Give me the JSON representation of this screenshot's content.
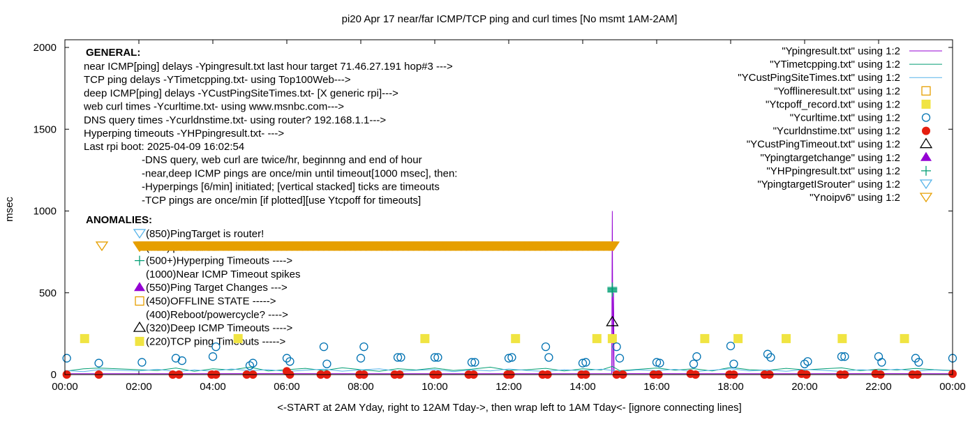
{
  "chart_data": {
    "type": "scatter",
    "title": "pi20 Apr 17  near/far ICMP/TCP ping and curl times [No msmt 1AM-2AM]",
    "xlabel": "<-START at 2AM Yday, right to 12AM Tday->, then wrap left to 1AM Tday<- [ignore connecting lines]",
    "ylabel": "msec",
    "xlim": [
      "00:00",
      "24:00"
    ],
    "ylim": [
      0,
      2050
    ],
    "x_ticks": [
      "00:00",
      "02:00",
      "04:00",
      "06:00",
      "08:00",
      "10:00",
      "12:00",
      "14:00",
      "16:00",
      "18:00",
      "20:00",
      "22:00",
      "00:00"
    ],
    "y_ticks": [
      0,
      500,
      1000,
      1500,
      2000
    ],
    "grid": false,
    "legend_placement": "top-right",
    "colors": {
      "ping": "#9400d3",
      "tcp": "#009e73",
      "custping": "#56b4e9",
      "offline": "#e69f00",
      "tcpoff": "#f0e442",
      "curl": "#0072b2",
      "dns": "#e51e10",
      "timeout": "#000000",
      "targetchange": "#9400d3",
      "hpping": "#009e73",
      "isrouter": "#56b4e9",
      "noipv6": "#e69f00"
    },
    "series": [
      {
        "name": "\"Ypingresult.txt\" using 1:2",
        "key": "ping",
        "style": "line",
        "points": [
          [
            "00:00",
            5
          ],
          [
            "00:55",
            5
          ],
          [
            "02:00",
            5
          ],
          [
            "06:00",
            6
          ],
          [
            "10:00",
            5
          ],
          [
            "14:47",
            6
          ],
          [
            "14:48",
            1000
          ],
          [
            "14:49",
            6
          ],
          [
            "14:50",
            500
          ],
          [
            "14:51",
            6
          ],
          [
            "18:00",
            5
          ],
          [
            "22:00",
            6
          ],
          [
            "24:00",
            5
          ]
        ]
      },
      {
        "name": "\"YTimetcpping.txt\" using 1:2",
        "key": "tcp",
        "style": "line",
        "points": [
          [
            "00:00",
            20
          ],
          [
            "00:30",
            35
          ],
          [
            "00:55",
            40
          ],
          [
            "02:00",
            30
          ],
          [
            "02:30",
            25
          ],
          [
            "03:00",
            40
          ],
          [
            "03:30",
            20
          ],
          [
            "04:00",
            35
          ],
          [
            "04:30",
            28
          ],
          [
            "05:00",
            45
          ],
          [
            "05:30",
            22
          ],
          [
            "06:00",
            30
          ],
          [
            "06:30",
            38
          ],
          [
            "07:00",
            25
          ],
          [
            "07:30",
            42
          ],
          [
            "08:00",
            30
          ],
          [
            "08:30",
            20
          ],
          [
            "09:00",
            36
          ],
          [
            "09:30",
            28
          ],
          [
            "10:00",
            40
          ],
          [
            "10:30",
            25
          ],
          [
            "11:00",
            33
          ],
          [
            "11:30",
            45
          ],
          [
            "12:00",
            26
          ],
          [
            "12:30",
            30
          ],
          [
            "13:00",
            38
          ],
          [
            "13:30",
            22
          ],
          [
            "14:00",
            35
          ],
          [
            "14:30",
            28
          ],
          [
            "14:48",
            50
          ],
          [
            "15:00",
            24
          ],
          [
            "15:30",
            32
          ],
          [
            "16:00",
            40
          ],
          [
            "16:30",
            27
          ],
          [
            "17:00",
            36
          ],
          [
            "17:30",
            22
          ],
          [
            "18:00",
            44
          ],
          [
            "18:30",
            30
          ],
          [
            "19:00",
            26
          ],
          [
            "19:30",
            38
          ],
          [
            "20:00",
            29
          ],
          [
            "20:30",
            35
          ],
          [
            "21:00",
            41
          ],
          [
            "21:30",
            24
          ],
          [
            "22:00",
            33
          ],
          [
            "22:30",
            28
          ],
          [
            "23:00",
            37
          ],
          [
            "23:30",
            30
          ],
          [
            "24:00",
            25
          ]
        ]
      },
      {
        "name": "\"YCustPingSiteTimes.txt\" using 1:2",
        "key": "custping",
        "style": "line",
        "points": [
          [
            "00:00",
            25
          ],
          [
            "00:30",
            18
          ],
          [
            "00:55",
            30
          ],
          [
            "02:00",
            22
          ],
          [
            "02:30",
            32
          ],
          [
            "03:00",
            18
          ],
          [
            "03:30",
            28
          ],
          [
            "04:00",
            20
          ],
          [
            "04:30",
            34
          ],
          [
            "05:00",
            24
          ],
          [
            "05:30",
            30
          ],
          [
            "06:00",
            19
          ],
          [
            "06:30",
            27
          ],
          [
            "07:00",
            33
          ],
          [
            "07:30",
            21
          ],
          [
            "08:00",
            29
          ],
          [
            "08:30",
            35
          ],
          [
            "09:00",
            20
          ],
          [
            "09:30",
            26
          ],
          [
            "10:00",
            31
          ],
          [
            "10:30",
            18
          ],
          [
            "11:00",
            28
          ],
          [
            "11:30",
            22
          ],
          [
            "12:00",
            34
          ],
          [
            "12:30",
            25
          ],
          [
            "13:00",
            19
          ],
          [
            "13:30",
            30
          ],
          [
            "14:00",
            23
          ],
          [
            "14:30",
            33
          ],
          [
            "15:00",
            20
          ],
          [
            "15:30",
            29
          ],
          [
            "16:00",
            24
          ],
          [
            "16:30",
            32
          ],
          [
            "17:00",
            18
          ],
          [
            "17:30",
            27
          ],
          [
            "18:00",
            35
          ],
          [
            "18:30",
            22
          ],
          [
            "19:00",
            28
          ],
          [
            "19:30",
            20
          ],
          [
            "20:00",
            31
          ],
          [
            "20:30",
            26
          ],
          [
            "21:00",
            19
          ],
          [
            "21:30",
            30
          ],
          [
            "22:00",
            24
          ],
          [
            "22:30",
            33
          ],
          [
            "23:00",
            21
          ],
          [
            "23:30",
            28
          ],
          [
            "24:00",
            23
          ]
        ]
      },
      {
        "name": "\"Yofflineresult.txt\" using 1:2",
        "key": "offline",
        "style": "open-square",
        "points": []
      },
      {
        "name": "\"Ytcpoff_record.txt\" using 1:2",
        "key": "tcpoff",
        "style": "filled-square",
        "points": [
          [
            "00:32",
            220
          ],
          [
            "04:41",
            220
          ],
          [
            "09:44",
            220
          ],
          [
            "12:11",
            220
          ],
          [
            "14:23",
            220
          ],
          [
            "14:48",
            220
          ],
          [
            "17:18",
            220
          ],
          [
            "18:12",
            220
          ],
          [
            "19:30",
            220
          ],
          [
            "21:01",
            220
          ],
          [
            "22:42",
            220
          ]
        ]
      },
      {
        "name": "\"Ycurltime.txt\" using 1:2",
        "key": "curl",
        "style": "open-circle",
        "points": [
          [
            "00:03",
            100
          ],
          [
            "00:55",
            70
          ],
          [
            "02:05",
            75
          ],
          [
            "03:00",
            100
          ],
          [
            "03:10",
            85
          ],
          [
            "04:00",
            110
          ],
          [
            "04:05",
            170
          ],
          [
            "05:00",
            55
          ],
          [
            "05:05",
            70
          ],
          [
            "06:00",
            100
          ],
          [
            "06:05",
            80
          ],
          [
            "07:00",
            170
          ],
          [
            "07:05",
            65
          ],
          [
            "08:00",
            100
          ],
          [
            "08:05",
            170
          ],
          [
            "09:00",
            105
          ],
          [
            "09:05",
            105
          ],
          [
            "10:00",
            105
          ],
          [
            "10:05",
            105
          ],
          [
            "11:00",
            75
          ],
          [
            "11:05",
            75
          ],
          [
            "12:00",
            100
          ],
          [
            "12:05",
            105
          ],
          [
            "13:00",
            170
          ],
          [
            "13:05",
            105
          ],
          [
            "14:00",
            70
          ],
          [
            "14:05",
            75
          ],
          [
            "14:55",
            170
          ],
          [
            "15:00",
            100
          ],
          [
            "16:00",
            75
          ],
          [
            "16:05",
            70
          ],
          [
            "17:00",
            65
          ],
          [
            "17:05",
            110
          ],
          [
            "18:00",
            175
          ],
          [
            "18:05",
            65
          ],
          [
            "19:00",
            125
          ],
          [
            "19:05",
            105
          ],
          [
            "20:00",
            65
          ],
          [
            "20:05",
            80
          ],
          [
            "21:00",
            110
          ],
          [
            "21:05",
            110
          ],
          [
            "22:00",
            110
          ],
          [
            "22:05",
            75
          ],
          [
            "23:00",
            100
          ],
          [
            "23:05",
            75
          ],
          [
            "24:00",
            100
          ]
        ]
      },
      {
        "name": "\"Ycurldnstime.txt\" using 1:2",
        "key": "dns",
        "style": "filled-circle",
        "points": [
          [
            "00:03",
            0
          ],
          [
            "00:55",
            0
          ],
          [
            "02:55",
            0
          ],
          [
            "03:05",
            0
          ],
          [
            "03:58",
            0
          ],
          [
            "04:05",
            0
          ],
          [
            "04:55",
            0
          ],
          [
            "05:05",
            0
          ],
          [
            "06:00",
            20
          ],
          [
            "06:05",
            0
          ],
          [
            "06:55",
            0
          ],
          [
            "07:05",
            0
          ],
          [
            "07:58",
            0
          ],
          [
            "08:05",
            0
          ],
          [
            "08:55",
            0
          ],
          [
            "09:03",
            0
          ],
          [
            "09:58",
            0
          ],
          [
            "10:05",
            0
          ],
          [
            "10:55",
            0
          ],
          [
            "11:03",
            0
          ],
          [
            "11:58",
            0
          ],
          [
            "12:03",
            0
          ],
          [
            "12:55",
            0
          ],
          [
            "13:03",
            0
          ],
          [
            "13:58",
            0
          ],
          [
            "14:05",
            0
          ],
          [
            "14:55",
            0
          ],
          [
            "15:05",
            0
          ],
          [
            "15:55",
            0
          ],
          [
            "16:03",
            0
          ],
          [
            "16:55",
            5
          ],
          [
            "17:03",
            0
          ],
          [
            "17:58",
            0
          ],
          [
            "18:05",
            0
          ],
          [
            "18:55",
            0
          ],
          [
            "19:03",
            0
          ],
          [
            "19:55",
            5
          ],
          [
            "20:03",
            0
          ],
          [
            "20:58",
            0
          ],
          [
            "21:05",
            0
          ],
          [
            "21:55",
            5
          ],
          [
            "22:03",
            0
          ],
          [
            "22:55",
            0
          ],
          [
            "23:03",
            0
          ],
          [
            "24:00",
            5
          ]
        ]
      },
      {
        "name": "\"YCustPingTimeout.txt\" using 1:2",
        "key": "timeout",
        "style": "open-triangle",
        "points": [
          [
            "14:48",
            320
          ]
        ]
      },
      {
        "name": "\"Ypingtargetchange\" using 1:2",
        "key": "targetchange",
        "style": "filled-triangle",
        "points": []
      },
      {
        "name": "\"YHPpingresult.txt\" using 1:2",
        "key": "hpping",
        "style": "plus",
        "points": [
          [
            "14:48",
            505
          ],
          [
            "14:48",
            512
          ],
          [
            "14:48",
            519
          ],
          [
            "14:48",
            526
          ],
          [
            "14:48",
            533
          ]
        ]
      },
      {
        "name": "\"YpingtargetISrouter\" using 1:2",
        "key": "isrouter",
        "style": "inv-triangle",
        "points": []
      },
      {
        "name": "\"Ynoipv6\" using 1:2",
        "key": "noipv6",
        "style": "inv-triangle",
        "points": [
          [
            "01:00",
            785
          ]
        ],
        "per_minute_range": {
          "from": "02:00",
          "to": "14:50",
          "value": 785
        }
      }
    ],
    "annotations": {
      "general_heading": "GENERAL:",
      "general_lines": [
        "near ICMP[ping] delays -Ypingresult.txt last hour target 71.46.27.191 hop#3 --->",
        "TCP ping delays -YTimetcpping.txt- using Top100Web--->",
        "deep ICMP[ping] delays -YCustPingSiteTimes.txt- [X generic rpi]--->",
        "web curl times -Ycurltime.txt- using www.msnbc.com--->",
        "DNS query times -Ycurldnstime.txt- using router? 192.168.1.1--->",
        "Hyperping timeouts -YHPpingresult.txt- --->",
        "Last rpi boot: 2025-04-09 16:02:54"
      ],
      "notes": [
        "-DNS query, web curl are twice/hr, beginnng and end of hour",
        "-near,deep ICMP pings are once/min until timeout[1000 msec], then:",
        "  -Hyperpings [6/min] initiated; [vertical stacked] ticks are timeouts",
        "-TCP pings are once/min [if plotted][use Ytcpoff for timeouts]"
      ],
      "anomalies_heading": "ANOMALIES:",
      "anomalies": [
        {
          "label": "(850)PingTarget is router!",
          "marker": "isrouter"
        },
        {
          "label": "(785)ipv6 failed",
          "marker": "noipv6"
        },
        {
          "label": "(500+)Hyperping Timeouts ---->",
          "marker": "hpping"
        },
        {
          "label": "(1000)Near ICMP Timeout spikes",
          "marker": ""
        },
        {
          "label": "(550)Ping Target Changes --->",
          "marker": "targetchange"
        },
        {
          "label": "(450)OFFLINE STATE ----->",
          "marker": "offline"
        },
        {
          "label": "(400)Reboot/powercycle? ---->",
          "marker": ""
        },
        {
          "label": "(320)Deep ICMP Timeouts ---->",
          "marker": "timeout"
        },
        {
          "label": "(220)TCP ping Timeouts ----->",
          "marker": "tcpoff"
        }
      ]
    }
  }
}
